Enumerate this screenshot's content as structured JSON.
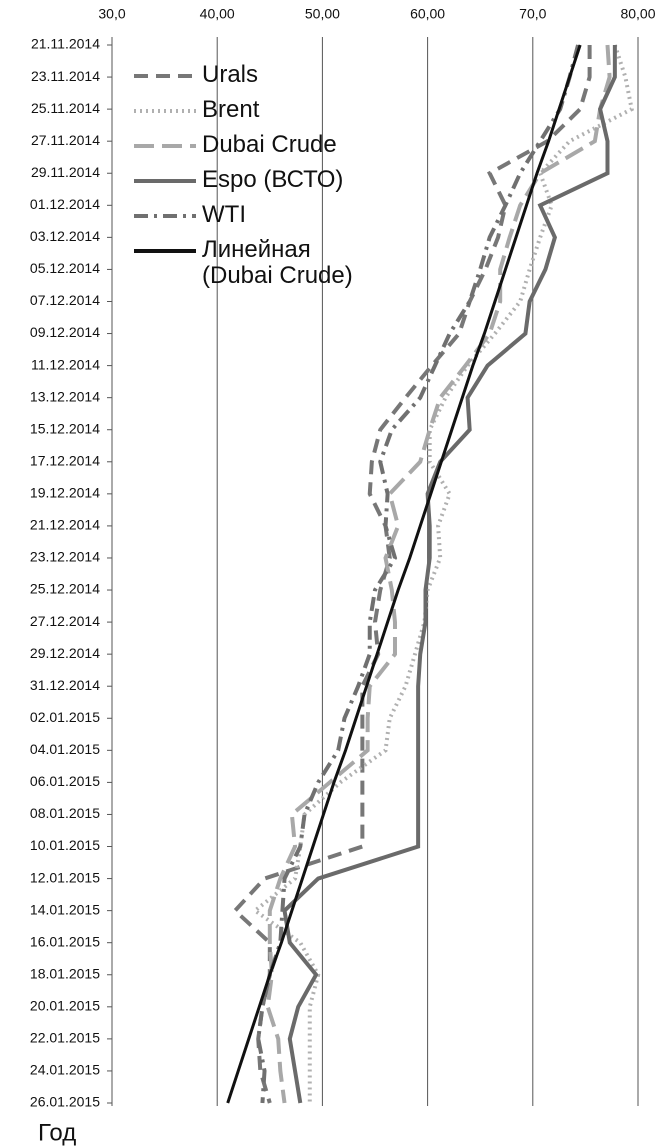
{
  "chart_data": {
    "type": "line",
    "orientation": "horizontal",
    "x_label": "Год",
    "categories": [
      "21.11.2014",
      "23.11.2014",
      "25.11.2014",
      "27.11.2014",
      "29.11.2014",
      "01.12.2014",
      "03.12.2014",
      "05.12.2014",
      "07.12.2014",
      "09.12.2014",
      "11.12.2014",
      "13.12.2014",
      "15.12.2014",
      "17.12.2014",
      "19.12.2014",
      "21.12.2014",
      "23.12.2014",
      "25.12.2014",
      "27.12.2014",
      "29.12.2014",
      "31.12.2014",
      "02.01.2015",
      "04.01.2015",
      "06.01.2015",
      "08.01.2015",
      "10.01.2015",
      "12.01.2015",
      "14.01.2015",
      "16.01.2015",
      "18.01.2015",
      "20.01.2015",
      "22.01.2015",
      "24.01.2015",
      "26.01.2015"
    ],
    "xlim": [
      30,
      80
    ],
    "xticks": [
      {
        "value": 30,
        "label": "30,0"
      },
      {
        "value": 40,
        "label": "40,00"
      },
      {
        "value": 50,
        "label": "50,00"
      },
      {
        "value": 60,
        "label": "60,00"
      },
      {
        "value": 70,
        "label": "70,0"
      },
      {
        "value": 80,
        "label": "80,00"
      }
    ],
    "grid": true,
    "legend": "upper left",
    "series": [
      {
        "name": "Urals",
        "color": "#777777",
        "dash": "14 8",
        "values": [
          75.4,
          75.4,
          74.5,
          71.4,
          65.9,
          67.4,
          66.7,
          65.5,
          64.0,
          63.0,
          60.4,
          57.9,
          55.5,
          54.7,
          54.5,
          56.0,
          56.4,
          55.5,
          55.0,
          55.3,
          53.8,
          53.8,
          53.8,
          53.8,
          53.8,
          53.8,
          44.5,
          41.7,
          45.0,
          45.0,
          44.3,
          43.9,
          44.1,
          45.0
        ]
      },
      {
        "name": "Brent",
        "color": "#b0b0b0",
        "dash": "2 4",
        "values": [
          77.8,
          78.8,
          79.4,
          73.5,
          70.7,
          71.8,
          70.7,
          69.7,
          68.8,
          66.4,
          63.8,
          61.7,
          60.2,
          60.2,
          62.1,
          61.0,
          61.2,
          60.0,
          59.7,
          58.8,
          57.9,
          56.4,
          56.0,
          51.7,
          48.3,
          47.9,
          47.4,
          43.6,
          47.9,
          49.6,
          48.8,
          48.8,
          48.8,
          48.8
        ]
      },
      {
        "name": "Dubai Crude",
        "color": "#a8a8a8",
        "dash": "20 8",
        "values": [
          77.1,
          77.3,
          76.4,
          75.9,
          70.7,
          68.8,
          67.8,
          66.9,
          66.9,
          65.9,
          63.6,
          61.2,
          60.2,
          59.3,
          56.4,
          57.2,
          56.0,
          56.6,
          56.9,
          56.9,
          54.5,
          54.3,
          54.3,
          50.7,
          47.1,
          47.4,
          46.0,
          45.0,
          45.0,
          45.2,
          44.8,
          45.8,
          46.0,
          46.4
        ]
      },
      {
        "name": "Espo (ВСТО)",
        "color": "#6a6a6a",
        "dash": "",
        "values": [
          77.8,
          77.8,
          76.4,
          77.1,
          77.1,
          70.7,
          72.1,
          71.2,
          69.7,
          69.3,
          65.7,
          63.8,
          64.0,
          61.2,
          60.0,
          60.2,
          60.2,
          59.8,
          59.8,
          59.3,
          59.1,
          59.1,
          59.1,
          59.1,
          59.1,
          59.1,
          49.6,
          46.4,
          46.9,
          49.4,
          47.7,
          46.9,
          47.4,
          47.9
        ]
      },
      {
        "name": "WTI",
        "color": "#707070",
        "dash": "14 6 3 6",
        "values": [
          74.3,
          73.5,
          72.6,
          70.7,
          68.8,
          67.4,
          65.9,
          65.0,
          64.0,
          62.1,
          60.7,
          59.3,
          56.6,
          55.5,
          56.2,
          56.0,
          56.9,
          55.0,
          54.5,
          54.5,
          53.4,
          52.1,
          51.5,
          49.6,
          48.3,
          47.9,
          46.4,
          46.2,
          46.0,
          45.0,
          44.3,
          43.9,
          44.5,
          44.3
        ]
      },
      {
        "name": "Линейная (Dubai Crude)",
        "color": "#111111",
        "dash": "",
        "values": [
          74.5,
          73.5,
          72.5,
          71.5,
          70.4,
          69.4,
          68.4,
          67.4,
          66.4,
          65.4,
          64.3,
          63.3,
          62.3,
          61.3,
          60.3,
          59.3,
          58.3,
          57.2,
          56.2,
          55.2,
          54.2,
          53.2,
          52.2,
          51.1,
          50.1,
          49.1,
          48.1,
          47.1,
          46.1,
          45.0,
          44.0,
          43.0,
          42.0,
          41.0
        ]
      }
    ]
  }
}
